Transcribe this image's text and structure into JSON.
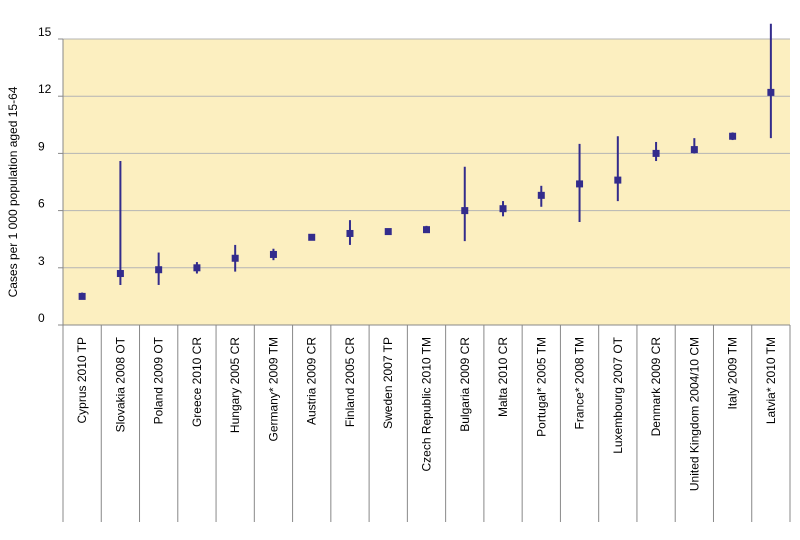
{
  "chart_data": {
    "type": "scatter",
    "title": "",
    "xlabel": "",
    "ylabel": "Cases per 1 000 population aged 15-64",
    "ylim": [
      0,
      15
    ],
    "yticks": [
      0,
      3,
      6,
      9,
      12,
      15
    ],
    "grid": true,
    "colors": {
      "plot_background": "#fcefc0",
      "marker": "#332c8c",
      "grid": "#b4b4b4",
      "axis": "#888888"
    },
    "categories": [
      "Cyprus 2010 TP",
      "Slovakia 2008 OT",
      "Poland 2009 OT",
      "Greece 2010 CR",
      "Hungary 2005 CR",
      "Germany* 2009 TM",
      "Austria 2009 CR",
      "Finland 2005 CR",
      "Sweden 2007 TP",
      "Czech Republic 2010 TM",
      "Bulgaria 2009 CR",
      "Malta 2010 CR",
      "Portugal* 2005 TM",
      "France* 2008 TM",
      "Luxembourg 2007 OT",
      "Denmark 2009 CR",
      "United Kingdom 2004/10 CM",
      "Italy 2009 TM",
      "Latvia* 2010 TM"
    ],
    "values": [
      1.5,
      2.7,
      2.9,
      3.0,
      3.5,
      3.7,
      4.6,
      4.8,
      4.9,
      5.0,
      6.0,
      6.1,
      6.8,
      7.4,
      7.6,
      9.0,
      9.2,
      9.9,
      12.2
    ],
    "low": [
      1.4,
      2.1,
      2.1,
      2.7,
      2.8,
      3.4,
      4.5,
      4.2,
      4.8,
      4.9,
      4.4,
      5.7,
      6.2,
      5.4,
      6.5,
      8.6,
      9.0,
      9.7,
      9.8
    ],
    "high": [
      1.7,
      8.6,
      3.8,
      3.3,
      4.2,
      4.0,
      4.7,
      5.5,
      5.0,
      5.2,
      8.3,
      6.5,
      7.3,
      9.5,
      9.9,
      9.6,
      9.8,
      10.1,
      15.8
    ]
  }
}
